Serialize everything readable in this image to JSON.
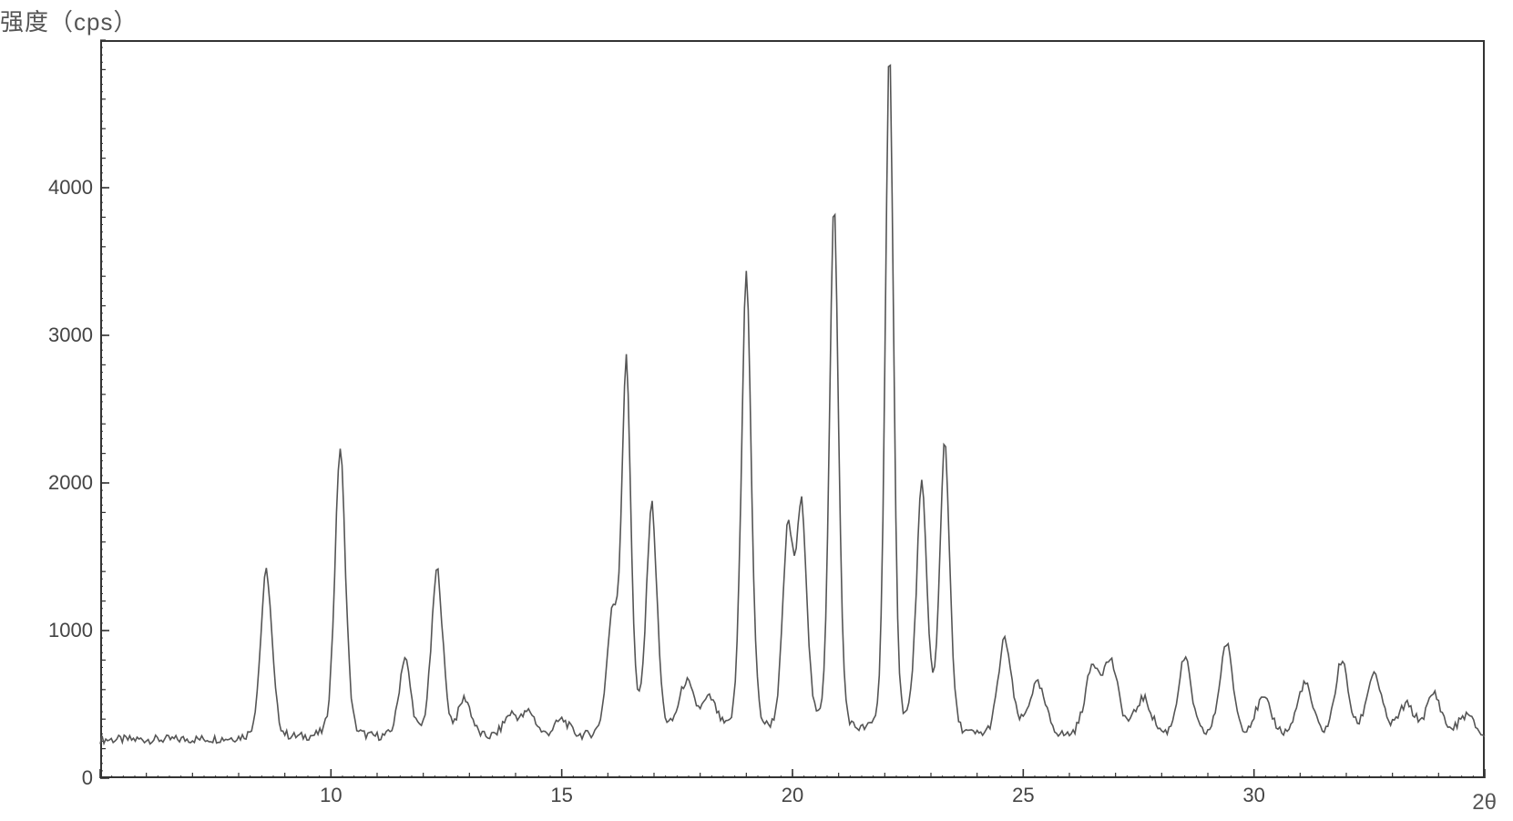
{
  "chart": {
    "type": "line-xrd",
    "y_axis_title": "强度（cps）",
    "x_axis_title": "2θ",
    "background_color": "#ffffff",
    "frame_color": "#333333",
    "line_color": "#555555",
    "line_width": 1.6,
    "tick_color": "#333333",
    "tick_font_size": 22,
    "label_font_size": 26,
    "xlim": [
      5,
      35
    ],
    "ylim": [
      0,
      5000
    ],
    "x_major_ticks": [
      5,
      10,
      15,
      20,
      25,
      30,
      35
    ],
    "x_major_tick_labels": [
      "",
      "10",
      "15",
      "20",
      "25",
      "30",
      ""
    ],
    "x_minor_step": 1,
    "x_tiny_step": 0.25,
    "y_major_ticks": [
      0,
      1000,
      2000,
      3000,
      4000
    ],
    "y_major_tick_labels": [
      "0",
      "1000",
      "2000",
      "3000",
      "4000"
    ],
    "y_minor_step": 200,
    "y_tiny_step": 50,
    "baseline": 260,
    "noise_amplitude": 30,
    "noise_step_x": 0.04,
    "peaks": [
      {
        "two_theta": 8.6,
        "intensity": 1400,
        "fwhm": 0.3
      },
      {
        "two_theta": 10.2,
        "intensity": 2230,
        "fwhm": 0.28
      },
      {
        "two_theta": 11.6,
        "intensity": 800,
        "fwhm": 0.3
      },
      {
        "two_theta": 12.3,
        "intensity": 1400,
        "fwhm": 0.3
      },
      {
        "two_theta": 12.9,
        "intensity": 520,
        "fwhm": 0.35
      },
      {
        "two_theta": 13.9,
        "intensity": 420,
        "fwhm": 0.4
      },
      {
        "two_theta": 14.3,
        "intensity": 430,
        "fwhm": 0.35
      },
      {
        "two_theta": 15.0,
        "intensity": 380,
        "fwhm": 0.4
      },
      {
        "two_theta": 16.1,
        "intensity": 1050,
        "fwhm": 0.3
      },
      {
        "two_theta": 16.4,
        "intensity": 2750,
        "fwhm": 0.24
      },
      {
        "two_theta": 16.95,
        "intensity": 1820,
        "fwhm": 0.28
      },
      {
        "two_theta": 17.7,
        "intensity": 620,
        "fwhm": 0.4
      },
      {
        "two_theta": 18.2,
        "intensity": 500,
        "fwhm": 0.4
      },
      {
        "two_theta": 19.0,
        "intensity": 3400,
        "fwhm": 0.26
      },
      {
        "two_theta": 19.9,
        "intensity": 1600,
        "fwhm": 0.28
      },
      {
        "two_theta": 20.2,
        "intensity": 1750,
        "fwhm": 0.28
      },
      {
        "two_theta": 20.9,
        "intensity": 3850,
        "fwhm": 0.24
      },
      {
        "two_theta": 22.1,
        "intensity": 4900,
        "fwhm": 0.22
      },
      {
        "two_theta": 22.8,
        "intensity": 1930,
        "fwhm": 0.28
      },
      {
        "two_theta": 23.3,
        "intensity": 2250,
        "fwhm": 0.26
      },
      {
        "two_theta": 24.6,
        "intensity": 920,
        "fwhm": 0.35
      },
      {
        "two_theta": 25.3,
        "intensity": 620,
        "fwhm": 0.45
      },
      {
        "two_theta": 26.5,
        "intensity": 720,
        "fwhm": 0.4
      },
      {
        "two_theta": 26.9,
        "intensity": 750,
        "fwhm": 0.4
      },
      {
        "two_theta": 27.6,
        "intensity": 520,
        "fwhm": 0.45
      },
      {
        "two_theta": 28.5,
        "intensity": 800,
        "fwhm": 0.35
      },
      {
        "two_theta": 29.4,
        "intensity": 900,
        "fwhm": 0.35
      },
      {
        "two_theta": 30.2,
        "intensity": 520,
        "fwhm": 0.45
      },
      {
        "two_theta": 31.1,
        "intensity": 630,
        "fwhm": 0.4
      },
      {
        "two_theta": 31.9,
        "intensity": 780,
        "fwhm": 0.35
      },
      {
        "two_theta": 32.6,
        "intensity": 700,
        "fwhm": 0.4
      },
      {
        "two_theta": 33.3,
        "intensity": 480,
        "fwhm": 0.45
      },
      {
        "two_theta": 33.9,
        "intensity": 560,
        "fwhm": 0.4
      },
      {
        "two_theta": 34.6,
        "intensity": 420,
        "fwhm": 0.45
      }
    ]
  }
}
